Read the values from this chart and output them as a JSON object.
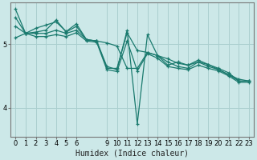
{
  "xlabel": "Humidex (Indice chaleur)",
  "bg_color": "#cce8e8",
  "line_color": "#1a7a6e",
  "grid_color": "#aacfcf",
  "xlim": [
    -0.5,
    23.5
  ],
  "ylim": [
    3.55,
    5.65
  ],
  "yticks": [
    4,
    5
  ],
  "ytick_labels": [
    "4",
    "5"
  ],
  "xticks": [
    0,
    1,
    2,
    3,
    4,
    5,
    6,
    9,
    10,
    11,
    12,
    13,
    14,
    15,
    16,
    17,
    18,
    19,
    20,
    21,
    22,
    23
  ],
  "series": [
    [
      5.28,
      5.17,
      5.17,
      5.17,
      5.22,
      5.17,
      5.22,
      5.07,
      5.05,
      5.02,
      4.97,
      4.62,
      4.62,
      4.87,
      4.82,
      4.77,
      4.7,
      4.67,
      4.72,
      4.68,
      4.6,
      4.52,
      4.42,
      4.42
    ],
    [
      5.42,
      5.17,
      5.19,
      5.22,
      5.38,
      5.19,
      5.28,
      5.07,
      5.05,
      4.62,
      4.62,
      5.18,
      4.9,
      4.87,
      4.82,
      4.67,
      4.72,
      4.67,
      4.75,
      4.68,
      4.62,
      4.55,
      4.42,
      4.42
    ],
    [
      5.55,
      5.17,
      5.25,
      5.3,
      5.35,
      5.2,
      5.32,
      5.07,
      5.05,
      4.65,
      4.6,
      5.22,
      3.75,
      5.15,
      4.82,
      4.72,
      4.65,
      4.62,
      4.72,
      4.65,
      4.6,
      4.52,
      4.45,
      4.42
    ],
    [
      5.1,
      5.17,
      5.12,
      5.12,
      5.15,
      5.12,
      5.18,
      5.05,
      5.03,
      4.6,
      4.57,
      5.05,
      4.58,
      4.85,
      4.78,
      4.65,
      4.62,
      4.6,
      4.67,
      4.62,
      4.58,
      4.5,
      4.4,
      4.4
    ]
  ],
  "marker": "+",
  "markersize": 3.5,
  "linewidth": 0.9,
  "tick_fontsize": 6.0,
  "xlabel_fontsize": 7.0
}
